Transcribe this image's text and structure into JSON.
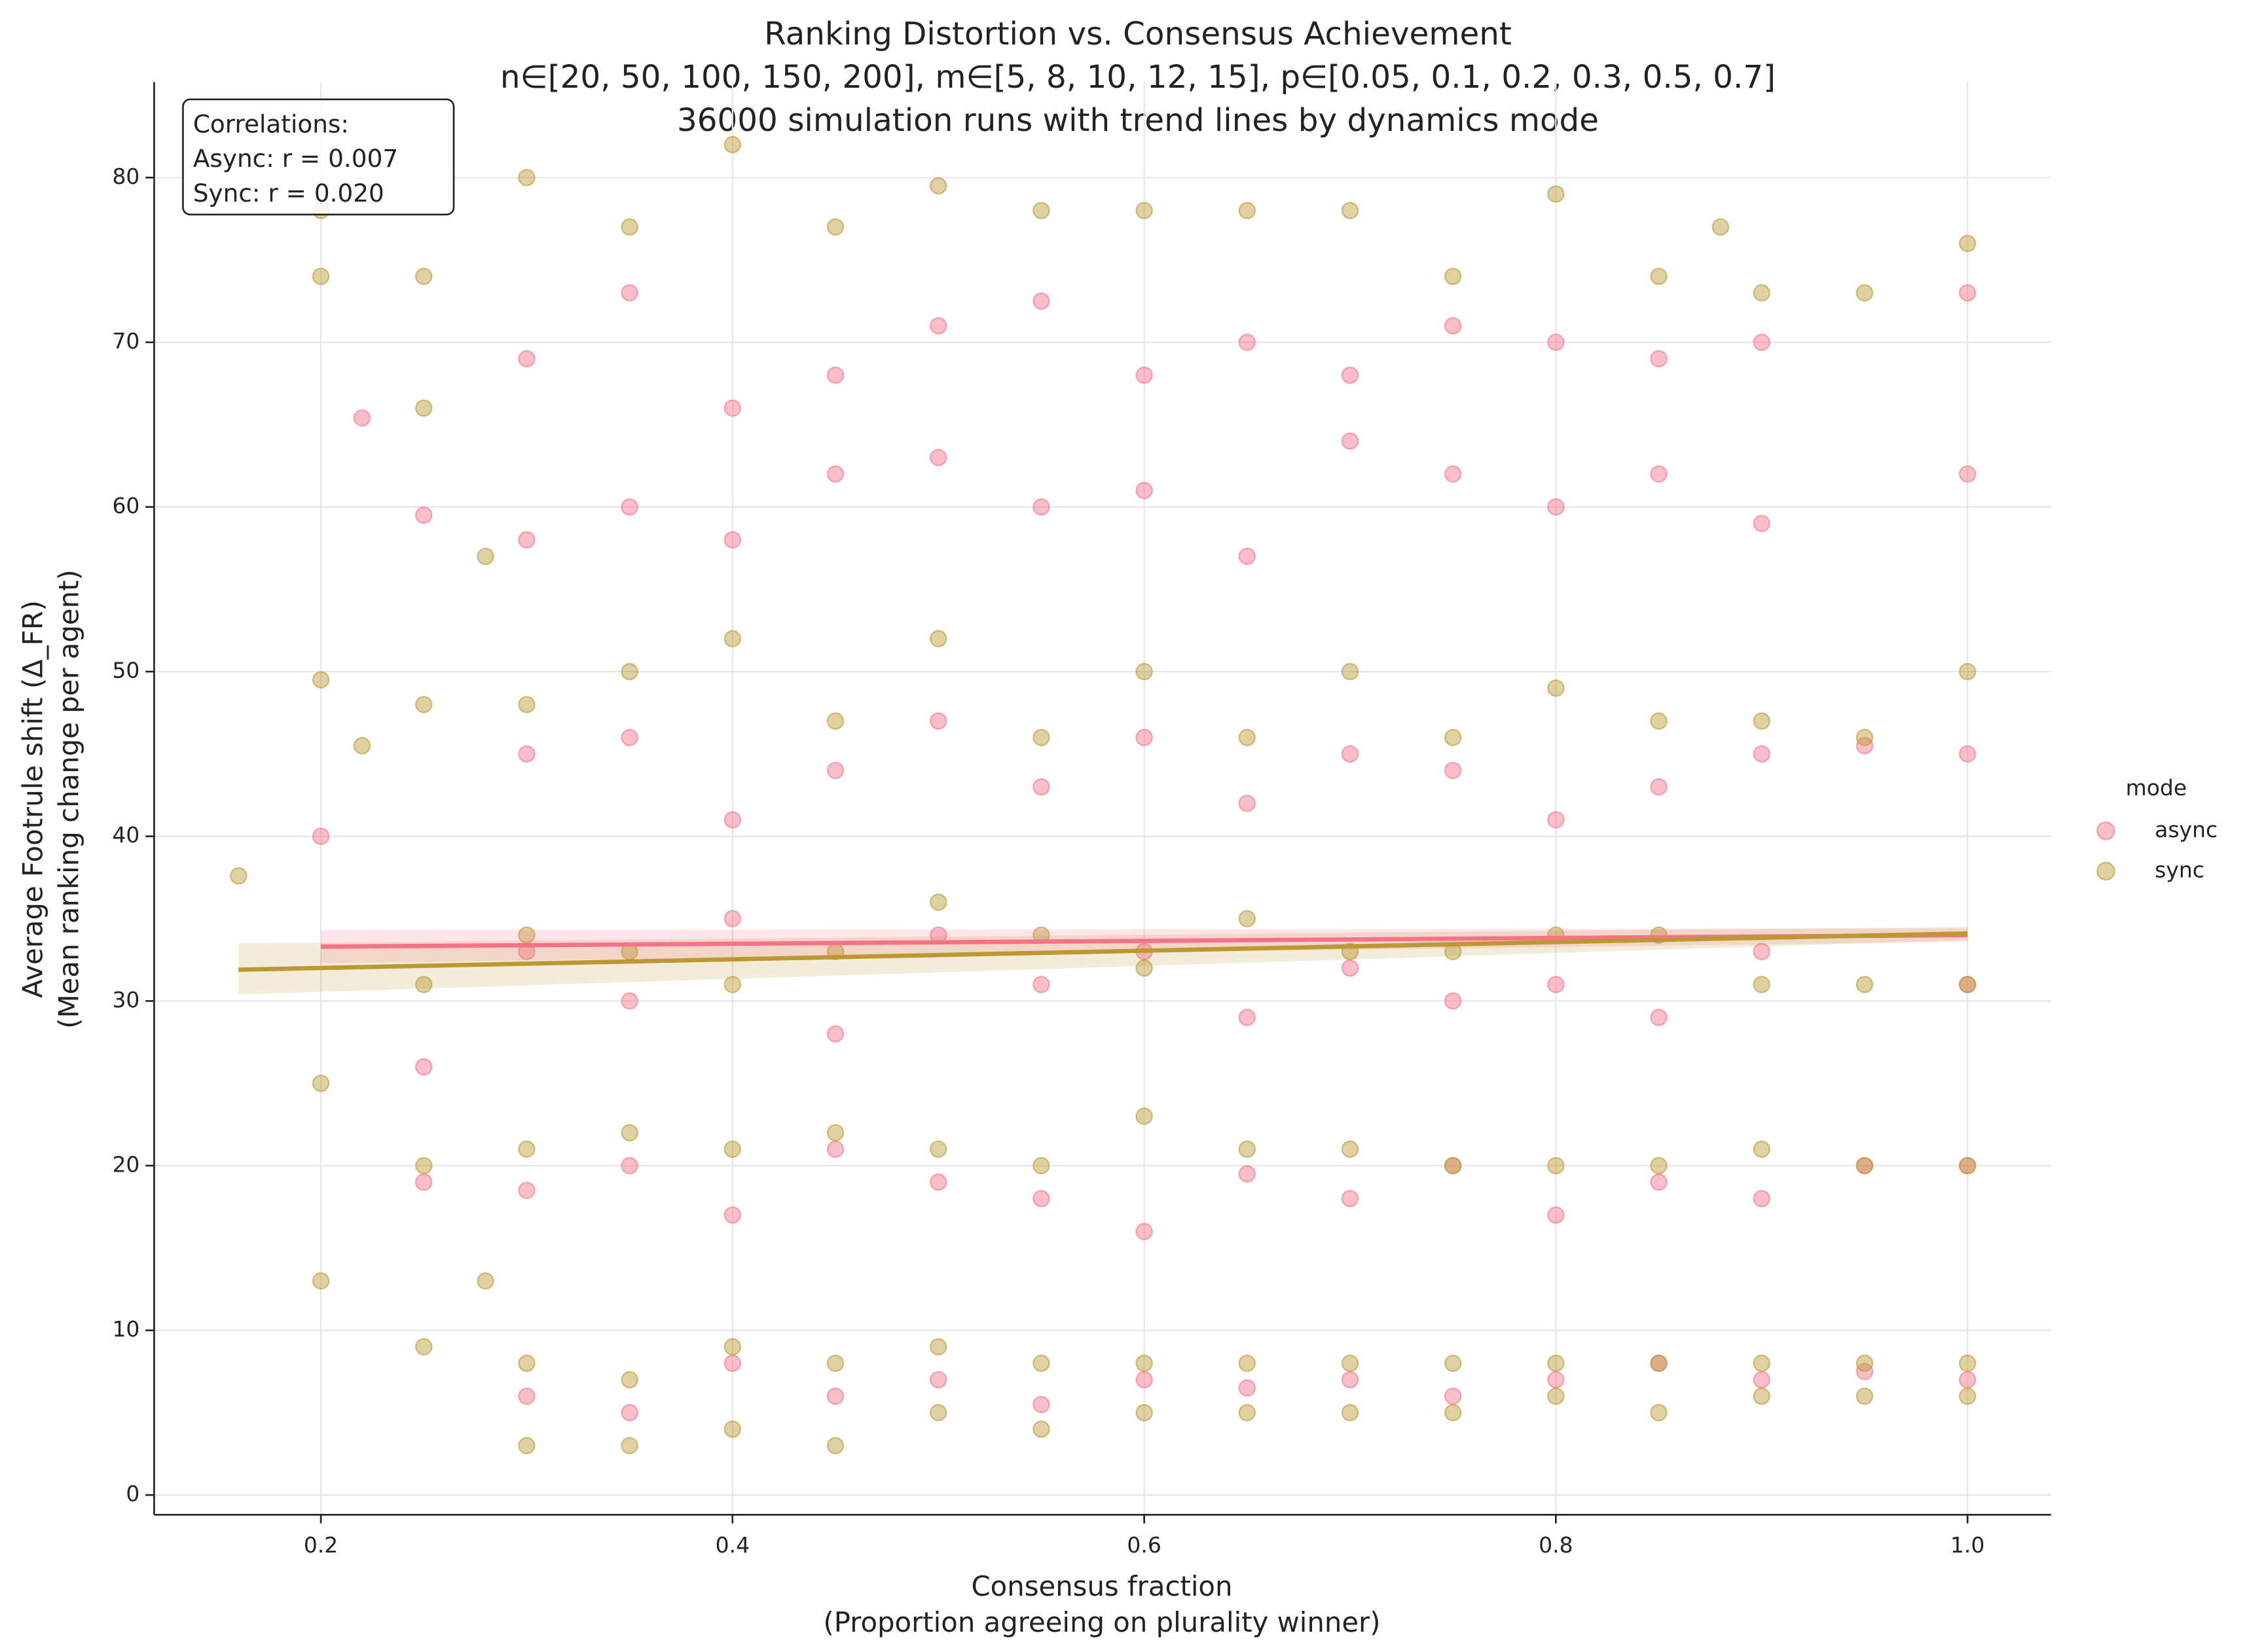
{
  "chart_data": {
    "type": "scatter",
    "title": [
      "Ranking Distortion vs. Consensus Achievement",
      "n∈[20, 50, 100, 150, 200], m∈[5, 8, 10, 12, 15], p∈[0.05, 0.1, 0.2, 0.3, 0.5, 0.7]",
      "36000 simulation runs with trend lines by dynamics mode"
    ],
    "xlabel": [
      "Consensus fraction",
      "(Proportion agreeing on plurality winner)"
    ],
    "ylabel": [
      "Average Footrule shift (Δ_FR)",
      "(Mean ranking change per agent)"
    ],
    "annotation": [
      "Correlations:",
      "Async: r = 0.007",
      "Sync: r = 0.020"
    ],
    "legend_title": "mode",
    "legend": "right",
    "grid": true,
    "xlim": [
      0.119,
      1.0406
    ],
    "ylim": [
      -1.2,
      85.8
    ],
    "xticks": [
      0.2,
      0.4,
      0.6,
      0.8,
      {
        "value": 1,
        "label": "1.0"
      }
    ],
    "yticks": [
      0,
      10,
      20,
      30,
      40,
      50,
      60,
      70,
      80
    ],
    "series": [
      {
        "name": "async",
        "color": "#f77189",
        "x": [
          0.2,
          0.22,
          0.25,
          0.25,
          0.25,
          0.3,
          0.3,
          0.3,
          0.3,
          0.3,
          0.3,
          0.35,
          0.35,
          0.35,
          0.35,
          0.35,
          0.35,
          0.4,
          0.4,
          0.4,
          0.4,
          0.4,
          0.4,
          0.45,
          0.45,
          0.45,
          0.45,
          0.45,
          0.45,
          0.5,
          0.5,
          0.5,
          0.5,
          0.5,
          0.5,
          0.55,
          0.55,
          0.55,
          0.55,
          0.55,
          0.55,
          0.6,
          0.6,
          0.6,
          0.6,
          0.6,
          0.6,
          0.65,
          0.65,
          0.65,
          0.65,
          0.65,
          0.65,
          0.7,
          0.7,
          0.7,
          0.7,
          0.7,
          0.7,
          0.75,
          0.75,
          0.75,
          0.75,
          0.75,
          0.75,
          0.8,
          0.8,
          0.8,
          0.8,
          0.8,
          0.8,
          0.85,
          0.85,
          0.85,
          0.85,
          0.85,
          0.85,
          0.9,
          0.9,
          0.9,
          0.9,
          0.9,
          0.9,
          0.95,
          0.95,
          0.95,
          1.0,
          1.0,
          1.0,
          1.0,
          1.0,
          1.0
        ],
        "values": [
          40,
          65.4,
          26,
          59.5,
          19,
          6,
          18.5,
          33,
          45,
          58,
          69,
          5,
          20,
          30,
          46,
          60,
          73,
          8,
          17,
          35,
          41,
          58,
          66,
          6,
          21,
          28,
          44,
          62,
          68,
          7,
          19,
          34,
          47,
          63,
          71,
          5.5,
          18,
          31,
          43,
          60,
          72.5,
          7,
          16,
          33,
          46,
          61,
          68,
          6.5,
          19.5,
          29,
          42,
          57,
          70,
          7,
          18,
          32,
          45,
          64,
          68,
          6,
          20,
          30,
          44,
          62,
          71,
          7,
          17,
          31,
          41,
          60,
          70,
          8,
          19,
          29,
          43,
          62,
          69,
          7,
          18,
          33,
          45,
          59,
          70,
          7.5,
          20,
          45.5,
          7,
          20,
          31,
          45,
          62,
          73
        ],
        "trend": {
          "x": [
            0.2,
            1.0
          ],
          "values": [
            33.3,
            34.0
          ],
          "ci_low": [
            32.3,
            33.6
          ],
          "ci_high": [
            34.3,
            34.4
          ]
        }
      },
      {
        "name": "sync",
        "color": "#bb9832",
        "x": [
          0.16,
          0.2,
          0.2,
          0.2,
          0.2,
          0.2,
          0.22,
          0.25,
          0.25,
          0.25,
          0.25,
          0.25,
          0.25,
          0.28,
          0.28,
          0.3,
          0.3,
          0.3,
          0.3,
          0.3,
          0.3,
          0.35,
          0.35,
          0.35,
          0.35,
          0.35,
          0.35,
          0.4,
          0.4,
          0.4,
          0.4,
          0.4,
          0.4,
          0.45,
          0.45,
          0.45,
          0.45,
          0.45,
          0.45,
          0.5,
          0.5,
          0.5,
          0.5,
          0.5,
          0.5,
          0.55,
          0.55,
          0.55,
          0.55,
          0.55,
          0.55,
          0.6,
          0.6,
          0.6,
          0.6,
          0.6,
          0.6,
          0.65,
          0.65,
          0.65,
          0.65,
          0.65,
          0.65,
          0.7,
          0.7,
          0.7,
          0.7,
          0.7,
          0.7,
          0.75,
          0.75,
          0.75,
          0.75,
          0.75,
          0.75,
          0.8,
          0.8,
          0.8,
          0.8,
          0.8,
          0.8,
          0.85,
          0.85,
          0.85,
          0.85,
          0.85,
          0.85,
          0.88,
          0.9,
          0.9,
          0.9,
          0.9,
          0.9,
          0.9,
          0.95,
          0.95,
          0.95,
          0.95,
          0.95,
          0.95,
          1.0,
          1.0,
          1.0,
          1.0,
          1.0,
          1.0
        ],
        "values": [
          37.6,
          13,
          25,
          49.5,
          74,
          78,
          45.5,
          9,
          20,
          31,
          48,
          66,
          74,
          13,
          57,
          3,
          8,
          21,
          34,
          48,
          80,
          3,
          7,
          22,
          33,
          50,
          77,
          4,
          9,
          21,
          31,
          52,
          82,
          3,
          8,
          22,
          33,
          47,
          77,
          5,
          9,
          21,
          36,
          52,
          79.5,
          4,
          8,
          20,
          34,
          46,
          78,
          5,
          8,
          23,
          32,
          50,
          78,
          5,
          8,
          21,
          35,
          46,
          78,
          5,
          8,
          21,
          33,
          50,
          78,
          5,
          8,
          20,
          33,
          46,
          74,
          6,
          8,
          20,
          34,
          49,
          79,
          5,
          8,
          20,
          34,
          47,
          74,
          77,
          6,
          8,
          21,
          31,
          47,
          73,
          6,
          8,
          20,
          31,
          46,
          73,
          6,
          8,
          20,
          31,
          50,
          76
        ],
        "trend": {
          "x": [
            0.16,
            1.0
          ],
          "values": [
            31.9,
            34.1
          ],
          "ci_low": [
            30.4,
            33.7
          ],
          "ci_high": [
            33.5,
            34.5
          ]
        }
      }
    ]
  }
}
